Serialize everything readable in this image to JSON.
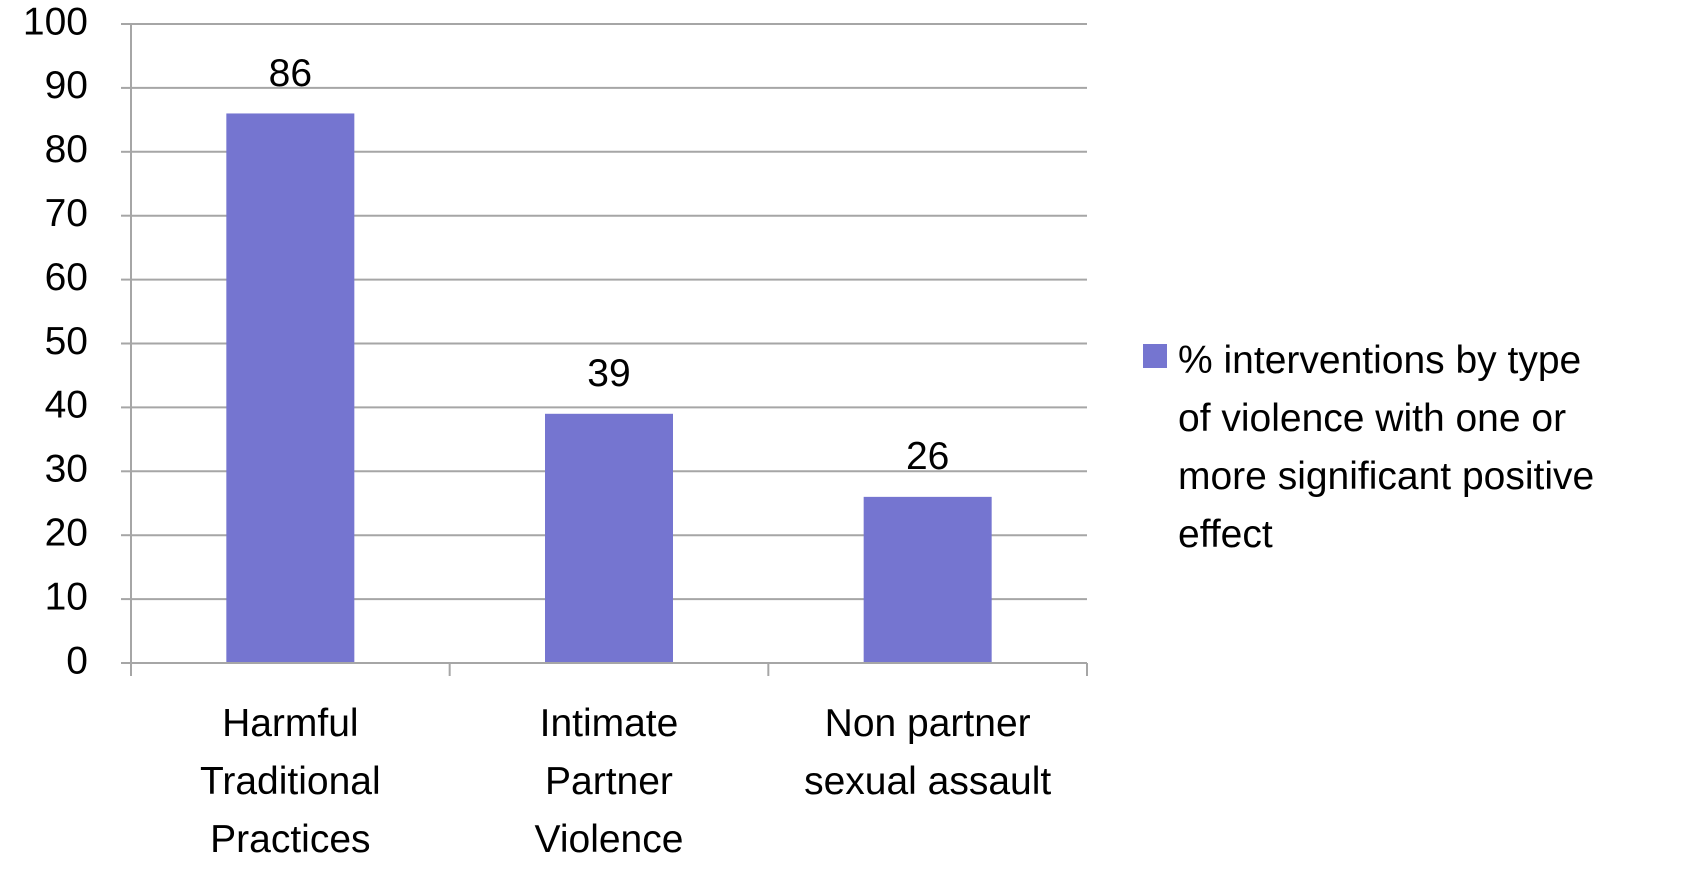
{
  "chart_data": {
    "type": "bar",
    "categories": [
      "Harmful\nTraditional\nPractices",
      "Intimate\nPartner\nViolence",
      "Non partner\nsexual assault"
    ],
    "series": [
      {
        "name": "% interventions by type\nof violence with one or\nmore significant positive\neffect",
        "color": "#7575d0",
        "values": [
          86,
          39,
          26
        ]
      }
    ],
    "ylim": [
      0,
      100
    ],
    "yticks": [
      0,
      10,
      20,
      30,
      40,
      50,
      60,
      70,
      80,
      90,
      100
    ],
    "grid": true,
    "legend": "right"
  }
}
